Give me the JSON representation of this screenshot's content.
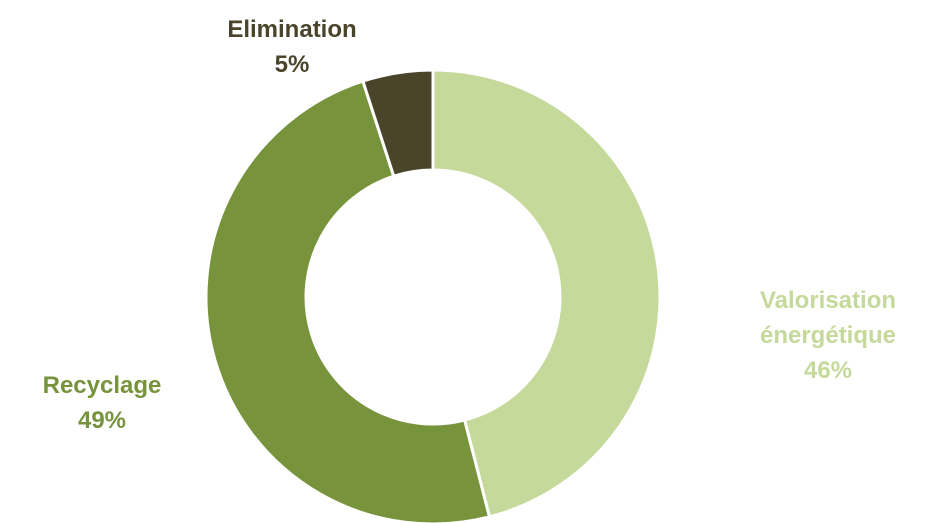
{
  "chart_data": {
    "type": "pie",
    "variant": "donut",
    "title": "",
    "legend": "none",
    "slices": [
      {
        "label": "Valorisation énergétique",
        "label_lines": [
          "Valorisation",
          "énergétique"
        ],
        "value": 46,
        "value_label": "46%",
        "color": "#c5d99b"
      },
      {
        "label": "Recyclage",
        "label_lines": [
          "Recyclage"
        ],
        "value": 49,
        "value_label": "49%",
        "color": "#77933c"
      },
      {
        "label": "Elimination",
        "label_lines": [
          "Elimination"
        ],
        "value": 5,
        "value_label": "5%",
        "color": "#4a452a"
      }
    ]
  }
}
